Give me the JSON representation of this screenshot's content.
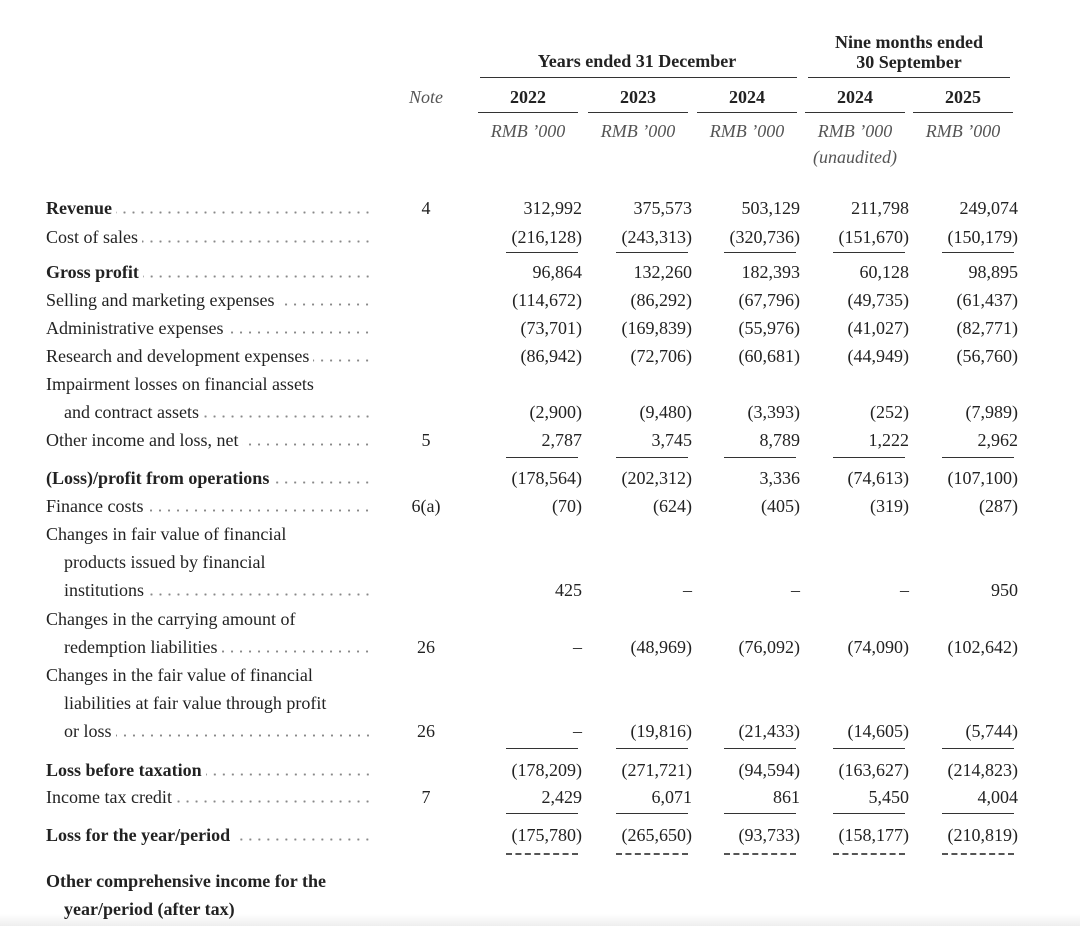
{
  "header": {
    "group1": "Years ended 31 December",
    "group2": [
      "Nine months ended",
      "30 September"
    ],
    "note": "Note",
    "years": [
      "2022",
      "2023",
      "2024",
      "2024",
      "2025"
    ],
    "units": [
      "RMB ’000",
      "RMB ’000",
      "RMB ’000",
      "RMB ’000",
      "RMB ’000"
    ],
    "unaudited": "(unaudited)"
  },
  "rows": [
    {
      "label": [
        "Revenue"
      ],
      "bold": true,
      "note": "4",
      "values": [
        "312,992",
        "375,573",
        "503,129",
        "211,798",
        "249,074"
      ]
    },
    {
      "label": [
        "Cost of sales"
      ],
      "values": [
        "(216,128)",
        "(243,313)",
        "(320,736)",
        "(151,670)",
        "(150,179)"
      ]
    },
    {
      "label": [
        "Gross profit"
      ],
      "bold": true,
      "values": [
        "96,864",
        "132,260",
        "182,393",
        "60,128",
        "98,895"
      ]
    },
    {
      "label": [
        "Selling and marketing expenses"
      ],
      "values": [
        "(114,672)",
        "(86,292)",
        "(67,796)",
        "(49,735)",
        "(61,437)"
      ]
    },
    {
      "label": [
        "Administrative expenses"
      ],
      "values": [
        "(73,701)",
        "(169,839)",
        "(55,976)",
        "(41,027)",
        "(82,771)"
      ]
    },
    {
      "label": [
        "Research and development expenses"
      ],
      "values": [
        "(86,942)",
        "(72,706)",
        "(60,681)",
        "(44,949)",
        "(56,760)"
      ]
    },
    {
      "label": [
        "Impairment losses on financial assets",
        "and contract assets"
      ],
      "values": [
        "(2,900)",
        "(9,480)",
        "(3,393)",
        "(252)",
        "(7,989)"
      ]
    },
    {
      "label": [
        "Other income and loss, net"
      ],
      "note": "5",
      "values": [
        "2,787",
        "3,745",
        "8,789",
        "1,222",
        "2,962"
      ]
    },
    {
      "label": [
        "(Loss)/profit from operations"
      ],
      "bold": true,
      "values": [
        "(178,564)",
        "(202,312)",
        "3,336",
        "(74,613)",
        "(107,100)"
      ]
    },
    {
      "label": [
        "Finance costs"
      ],
      "note": "6(a)",
      "values": [
        "(70)",
        "(624)",
        "(405)",
        "(319)",
        "(287)"
      ]
    },
    {
      "label": [
        "Changes in fair value of financial",
        "products issued by financial",
        "institutions"
      ],
      "values": [
        "425",
        "–",
        "–",
        "–",
        "950"
      ]
    },
    {
      "label": [
        "Changes in the carrying amount of",
        "redemption liabilities"
      ],
      "note": "26",
      "values": [
        "–",
        "(48,969)",
        "(76,092)",
        "(74,090)",
        "(102,642)"
      ]
    },
    {
      "label": [
        "Changes in the fair value of financial",
        "liabilities at fair value through profit",
        "or loss"
      ],
      "note": "26",
      "values": [
        "–",
        "(19,816)",
        "(21,433)",
        "(14,605)",
        "(5,744)"
      ]
    },
    {
      "label": [
        "Loss before taxation"
      ],
      "bold": true,
      "values": [
        "(178,209)",
        "(271,721)",
        "(94,594)",
        "(163,627)",
        "(214,823)"
      ]
    },
    {
      "label": [
        "Income tax credit"
      ],
      "note": "7",
      "values": [
        "2,429",
        "6,071",
        "861",
        "5,450",
        "4,004"
      ]
    },
    {
      "label": [
        "Loss for the year/period"
      ],
      "bold": true,
      "values": [
        "(175,780)",
        "(265,650)",
        "(93,733)",
        "(158,177)",
        "(210,819)"
      ]
    },
    {
      "label": [
        "Other comprehensive income for the",
        "year/period (after tax)"
      ],
      "bold": true,
      "values": []
    }
  ]
}
